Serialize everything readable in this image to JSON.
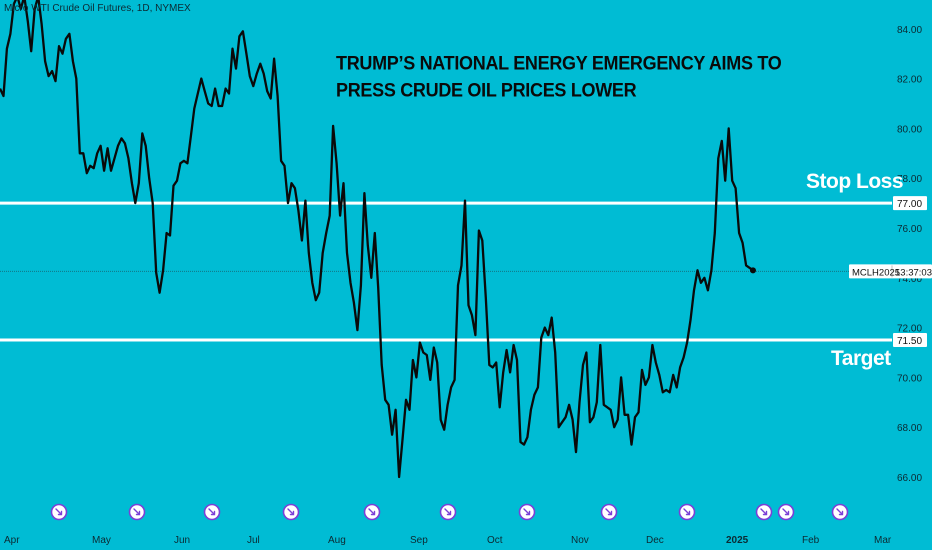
{
  "header": {
    "symbol_title": "Micro WTI Crude Oil Futures, 1D, NYMEX"
  },
  "headline": {
    "line1": "TRUMP’S NATIONAL ENERGY EMERGENCY AIMS TO",
    "line2": "PRESS CRUDE OIL PRICES LOWER"
  },
  "levels": {
    "stop_loss": {
      "label": "Stop Loss",
      "price_tag": "77.00",
      "value": 77.0
    },
    "target": {
      "label": "Target",
      "price_tag": "71.50",
      "value": 71.5
    }
  },
  "price_tag": {
    "symbol": "MCLH2025",
    "time": "13:37:03"
  },
  "colors": {
    "background": "#00bcd4",
    "price_line": "#0a0a0a",
    "level_line": "#ffffff",
    "axis_text": "#0b2a33",
    "event_icon": "#7b3fd6"
  },
  "chart_data": {
    "type": "line",
    "title": "Micro WTI Crude Oil Futures, 1D, NYMEX",
    "xlabel": "",
    "ylabel": "",
    "x_tick_labels": [
      "Apr",
      "May",
      "Jun",
      "Jul",
      "Aug",
      "Sep",
      "Oct",
      "Nov",
      "Dec",
      "2025",
      "Feb",
      "Mar"
    ],
    "y_tick_labels": [
      "66.00",
      "68.00",
      "70.00",
      "72.00",
      "74.00",
      "76.00",
      "78.00",
      "80.00",
      "82.00",
      "84.00"
    ],
    "ylim": [
      65.0,
      85.2
    ],
    "grid": false,
    "horizontal_levels": [
      {
        "label": "Stop Loss",
        "value": 77.0
      },
      {
        "label": "Target",
        "value": 71.5
      }
    ],
    "event_markers": 12,
    "series": [
      {
        "values": [
          81.6,
          81.3,
          83.2,
          83.8,
          85.0,
          85.3,
          84.8,
          85.3,
          84.3,
          83.1,
          84.8,
          85.3,
          84.2,
          82.7,
          82.1,
          82.3,
          81.9,
          83.3,
          83.0,
          83.6,
          83.8,
          82.7,
          82.0,
          79.0,
          79.0,
          78.2,
          78.5,
          78.4,
          79.0,
          79.3,
          78.3,
          79.2,
          78.3,
          78.8,
          79.3,
          79.6,
          79.4,
          78.8,
          77.8,
          77.0,
          77.8,
          79.8,
          79.3,
          78.0,
          77.0,
          74.2,
          73.4,
          74.3,
          75.8,
          75.7,
          77.7,
          77.9,
          78.6,
          78.7,
          78.6,
          79.7,
          80.8,
          81.4,
          82.0,
          81.5,
          81.0,
          80.9,
          81.6,
          80.9,
          80.9,
          81.6,
          81.4,
          83.2,
          82.4,
          83.7,
          83.9,
          83.0,
          82.1,
          81.7,
          82.2,
          82.6,
          82.2,
          81.5,
          81.2,
          82.8,
          81.3,
          78.7,
          78.5,
          77.0,
          77.8,
          77.6,
          76.7,
          75.5,
          77.1,
          75.0,
          73.8,
          73.1,
          73.4,
          75.0,
          75.8,
          76.5,
          80.1,
          78.6,
          76.5,
          77.8,
          75.0,
          73.8,
          73.0,
          71.9,
          73.7,
          77.4,
          75.3,
          74.0,
          75.8,
          73.6,
          70.5,
          69.1,
          68.9,
          67.7,
          68.7,
          66.0,
          67.5,
          69.1,
          68.7,
          70.7,
          70.0,
          71.4,
          71.0,
          70.9,
          69.9,
          71.2,
          70.6,
          68.3,
          67.9,
          68.9,
          69.6,
          69.9,
          73.7,
          74.5,
          77.1,
          72.9,
          72.5,
          71.7,
          75.9,
          75.5,
          73.2,
          70.5,
          70.4,
          70.6,
          68.8,
          70.2,
          71.1,
          70.2,
          71.3,
          70.7,
          67.4,
          67.3,
          67.6,
          68.7,
          69.3,
          69.6,
          71.6,
          72.0,
          71.7,
          72.4,
          71.0,
          68.0,
          68.2,
          68.4,
          68.9,
          68.3,
          67.0,
          69.0,
          70.5,
          71.0,
          68.2,
          68.4,
          69.0,
          71.3,
          68.9,
          68.8,
          68.7,
          68.0,
          68.3,
          70.0,
          68.5,
          68.5,
          67.3,
          68.4,
          68.6,
          70.3,
          69.7,
          70.0,
          71.3,
          70.6,
          70.1,
          69.4,
          69.5,
          69.4,
          70.1,
          69.6,
          70.4,
          70.8,
          71.4,
          72.3,
          73.5,
          74.3,
          73.8,
          74.0,
          73.5,
          74.3,
          75.8,
          78.8,
          79.5,
          77.9,
          80.0,
          77.9,
          77.6,
          75.8,
          75.4,
          74.5,
          74.4,
          74.3
        ]
      }
    ]
  }
}
